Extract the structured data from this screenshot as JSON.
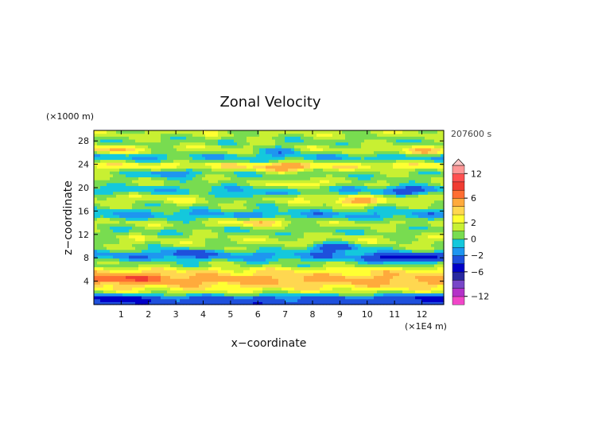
{
  "chart_data": {
    "type": "heatmap",
    "title": "Zonal Velocity",
    "xlabel": "x−coordinate",
    "ylabel": "z−coordinate",
    "x_unit": "(×1E4 m)",
    "y_unit": "(×1000 m)",
    "time_label": "207600 s",
    "xlim": [
      0,
      12.8
    ],
    "ylim": [
      0,
      29.8
    ],
    "x_ticks": [
      1,
      2,
      3,
      4,
      5,
      6,
      7,
      8,
      9,
      10,
      11,
      12
    ],
    "y_ticks": [
      4,
      8,
      12,
      16,
      20,
      24,
      28
    ],
    "colorbar": {
      "levels": [
        -14,
        -12,
        -10,
        -8,
        -6,
        -4,
        -2,
        -1,
        0,
        1,
        2,
        3,
        4,
        6,
        8,
        10,
        12,
        14
      ],
      "colors": [
        "#f046c8",
        "#b432c8",
        "#7846c8",
        "#2828a0",
        "#0000c8",
        "#1e50dc",
        "#1e96f0",
        "#14c8dc",
        "#78dc50",
        "#c8f032",
        "#ffff32",
        "#ffd750",
        "#ffaa3c",
        "#ff6e32",
        "#f03c32",
        "#ff5050",
        "#ff9696"
      ],
      "over_color": "#ffc8c8",
      "tick_labels": [
        "12",
        "6",
        "2",
        "0",
        "−2",
        "−6",
        "−12"
      ],
      "tick_values": [
        12,
        6,
        2,
        0,
        -2,
        -6,
        -12
      ]
    },
    "bands": [
      {
        "z": 1.0,
        "v": -3.0
      },
      {
        "z": 2.2,
        "v": 1.2
      },
      {
        "z": 3.0,
        "v": 3.5
      },
      {
        "z": 4.4,
        "v": 4.5
      },
      {
        "z": 5.6,
        "v": 3.0
      },
      {
        "z": 7.0,
        "v": 0.6
      },
      {
        "z": 8.4,
        "v": -1.5
      },
      {
        "z": 9.8,
        "v": 0.8
      },
      {
        "z": 11.2,
        "v": 1.4
      },
      {
        "z": 12.6,
        "v": 0.3
      },
      {
        "z": 14.0,
        "v": 1.2
      },
      {
        "z": 15.4,
        "v": -1.2
      },
      {
        "z": 16.8,
        "v": 0.6
      },
      {
        "z": 18.2,
        "v": 1.8
      },
      {
        "z": 19.6,
        "v": -0.6
      },
      {
        "z": 21.0,
        "v": 0.9
      },
      {
        "z": 22.4,
        "v": 0.4
      },
      {
        "z": 23.8,
        "v": 2.6
      },
      {
        "z": 25.2,
        "v": -0.8
      },
      {
        "z": 26.6,
        "v": 1.6
      },
      {
        "z": 28.0,
        "v": 0.5
      },
      {
        "z": 29.4,
        "v": 1.3
      }
    ],
    "patches": [
      {
        "x": 1.8,
        "z": 4.6,
        "v": 3.5
      },
      {
        "x": 0.3,
        "z": 4.6,
        "v": 3.5
      },
      {
        "x": 8.8,
        "z": 9.8,
        "v": -4.5
      },
      {
        "x": 11.8,
        "z": 8.0,
        "v": -3.5
      },
      {
        "x": 10.8,
        "z": 8.0,
        "v": -3.0
      },
      {
        "x": 7.0,
        "z": 23.6,
        "v": 3.5
      },
      {
        "x": 3.3,
        "z": 9.0,
        "v": -2.5
      },
      {
        "x": 0.9,
        "z": 1.1,
        "v": -3.5
      },
      {
        "x": 2.8,
        "z": 22.6,
        "v": -3.0
      },
      {
        "x": 9.6,
        "z": 17.6,
        "v": 3.0
      },
      {
        "x": 7.6,
        "z": 20.6,
        "v": 2.5
      },
      {
        "x": 11.6,
        "z": 19.6,
        "v": -3.0
      },
      {
        "x": 5.6,
        "z": 18.6,
        "v": -2.5
      },
      {
        "x": 0.5,
        "z": 26.6,
        "v": 2.5
      },
      {
        "x": 12.0,
        "z": 26.2,
        "v": 2.5
      },
      {
        "x": 6.8,
        "z": 26.4,
        "v": -2.5
      },
      {
        "x": 12.2,
        "z": 1.3,
        "v": -2.5
      },
      {
        "x": 6.0,
        "z": 14.2,
        "v": 3.0
      }
    ]
  }
}
